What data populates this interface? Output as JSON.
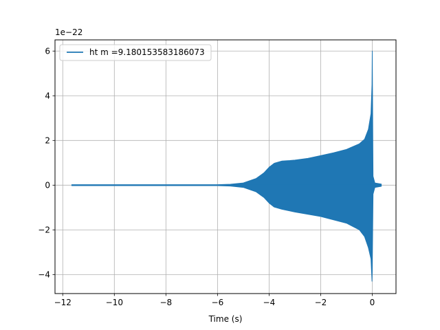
{
  "chart_data": {
    "type": "line",
    "title": "",
    "xlabel": "Time (s)",
    "ylabel": "",
    "offset_label": "1e−22",
    "xlim": [
      -12.3,
      0.92
    ],
    "ylim": [
      -4.85,
      6.5
    ],
    "grid": true,
    "legend_position": "upper-left",
    "x_ticks": [
      -12,
      -10,
      -8,
      -6,
      -4,
      -2,
      0
    ],
    "x_tick_labels": [
      "−12",
      "−10",
      "−8",
      "−6",
      "−4",
      "−2",
      "0"
    ],
    "y_ticks": [
      -4,
      -2,
      0,
      2,
      4,
      6
    ],
    "y_tick_labels": [
      "−4",
      "−2",
      "0",
      "2",
      "4",
      "6"
    ],
    "series": [
      {
        "name": "ht m =9.180153583186073",
        "color": "#1f77b4",
        "x_range": [
          -11.65,
          0.35
        ],
        "envelope": {
          "t": [
            -11.65,
            -6.0,
            -5.5,
            -5.0,
            -4.5,
            -4.2,
            -4.0,
            -3.8,
            -3.5,
            -3.2,
            -3.0,
            -2.5,
            -2.0,
            -1.5,
            -1.0,
            -0.5,
            -0.3,
            -0.15,
            -0.05,
            -0.01,
            0.0,
            0.03,
            0.1,
            0.35
          ],
          "upper": [
            0.02,
            0.02,
            0.04,
            0.1,
            0.3,
            0.55,
            0.8,
            0.98,
            1.08,
            1.1,
            1.12,
            1.2,
            1.32,
            1.45,
            1.6,
            1.85,
            2.05,
            2.5,
            3.2,
            4.5,
            6.0,
            0.4,
            0.1,
            0.05
          ],
          "lower": [
            -0.02,
            -0.02,
            -0.04,
            -0.1,
            -0.3,
            -0.55,
            -0.8,
            -0.98,
            -1.08,
            -1.15,
            -1.2,
            -1.3,
            -1.4,
            -1.55,
            -1.7,
            -2.0,
            -2.3,
            -2.8,
            -3.3,
            -4.3,
            -3.8,
            -0.4,
            -0.1,
            -0.05
          ]
        }
      }
    ]
  }
}
